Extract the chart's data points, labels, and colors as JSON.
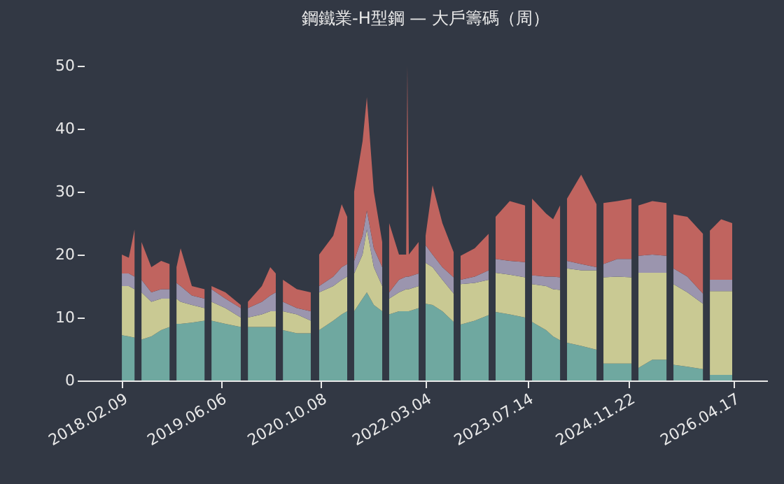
{
  "chart_data": {
    "type": "area",
    "stacked": true,
    "title": "鋼鐵業-H型鋼 — 大戶籌碼（周）",
    "x": [
      "2018-02-09",
      "2018-03-15",
      "2018-04-12",
      "2018-04-29",
      "2018-05-16",
      "2018-07-03",
      "2018-08-20",
      "2018-09-30",
      "2018-10-17",
      "2018-11-03",
      "2018-11-23",
      "2019-01-17",
      "2019-03-20",
      "2019-04-06",
      "2019-04-23",
      "2019-06-30",
      "2019-09-13",
      "2019-10-01",
      "2019-10-18",
      "2019-12-25",
      "2020-02-04",
      "2020-03-02",
      "2020-03-20",
      "2020-04-06",
      "2020-06-13",
      "2020-08-20",
      "2020-09-10",
      "2020-09-30",
      "2020-12-08",
      "2021-01-18",
      "2021-02-14",
      "2021-03-03",
      "2021-03-20",
      "2021-04-30",
      "2021-05-21",
      "2021-06-24",
      "2021-08-04",
      "2021-08-21",
      "2021-09-07",
      "2021-10-25",
      "2021-11-29",
      "2021-12-05",
      "2021-12-12",
      "2022-01-29",
      "2022-02-15",
      "2022-03-04",
      "2022-04-07",
      "2022-05-25",
      "2022-07-19",
      "2022-08-05",
      "2022-08-22",
      "2022-10-30",
      "2023-01-06",
      "2023-01-23",
      "2023-02-09",
      "2023-04-19",
      "2023-07-03",
      "2023-07-20",
      "2023-08-06",
      "2023-10-14",
      "2023-11-17",
      "2023-12-21",
      "2024-01-07",
      "2024-01-24",
      "2024-04-02",
      "2024-06-16",
      "2024-07-03",
      "2024-07-20",
      "2024-09-26",
      "2024-12-04",
      "2024-12-21",
      "2025-01-07",
      "2025-03-16",
      "2025-05-24",
      "2025-06-10",
      "2025-06-27",
      "2025-09-03",
      "2025-11-18",
      "2025-12-05",
      "2025-12-22",
      "2026-02-15",
      "2026-04-10"
    ],
    "xlim": [
      "2017-08-08",
      "2026-09-28"
    ],
    "xticks": [
      {
        "value": "2018-02-09",
        "label": "2018.02.09"
      },
      {
        "value": "2019-06-06",
        "label": "2019.06.06"
      },
      {
        "value": "2020-10-08",
        "label": "2020.10.08"
      },
      {
        "value": "2022-03-04",
        "label": "2022.03.04"
      },
      {
        "value": "2023-07-14",
        "label": "2023.07.14"
      },
      {
        "value": "2024-11-22",
        "label": "2024.11.22"
      },
      {
        "value": "2026-04-17",
        "label": "2026.04.17"
      }
    ],
    "ylim": [
      0,
      50
    ],
    "yticks": [
      0,
      10,
      20,
      30,
      40,
      50
    ],
    "grid": false,
    "series": [
      {
        "color": "#6fa8a0",
        "values": [
          7.2,
          7,
          6.8,
          null,
          6.5,
          7,
          8,
          8.5,
          null,
          9,
          9,
          9.2,
          9.5,
          null,
          9.5,
          9,
          8.5,
          null,
          8.5,
          8.5,
          8.5,
          8.5,
          null,
          8,
          7.5,
          7.5,
          null,
          8,
          9.5,
          10.5,
          11,
          null,
          11,
          13,
          14,
          12,
          11,
          null,
          10.5,
          11,
          11,
          11,
          11,
          11.5,
          null,
          12.2,
          12,
          11,
          9.3,
          null,
          8.9,
          9.5,
          10.4,
          null,
          10.9,
          10.5,
          10,
          null,
          9.3,
          8,
          7,
          6.4,
          null,
          6,
          5.5,
          4.9,
          null,
          2.7,
          2.7,
          2.7,
          null,
          2,
          3.3,
          3.3,
          null,
          2.5,
          2.2,
          1.8,
          null,
          0.9,
          0.9,
          0.9
        ]
      },
      {
        "color": "#c9c993",
        "values": [
          7.8,
          8,
          7.7,
          null,
          7.5,
          5.5,
          5,
          4.5,
          null,
          4,
          3.5,
          2.8,
          2,
          null,
          3,
          2.5,
          1.5,
          null,
          1.5,
          2,
          2.5,
          2.5,
          null,
          3,
          3,
          2,
          null,
          6,
          5.5,
          5.5,
          5.5,
          null,
          6,
          7,
          10,
          6,
          4,
          null,
          2.5,
          3,
          3.5,
          3.5,
          3.5,
          3.5,
          null,
          6.5,
          6,
          5,
          4.5,
          null,
          6.4,
          6,
          5.6,
          null,
          6.2,
          6.3,
          6.4,
          null,
          6,
          7,
          7.5,
          8,
          null,
          11.8,
          12,
          12.6,
          null,
          13.7,
          13.8,
          13.7,
          null,
          15.1,
          13.8,
          13.8,
          null,
          12.8,
          11.8,
          10.4,
          null,
          13.3,
          13.3,
          13.3
        ]
      },
      {
        "color": "#9b95ae",
        "values": [
          2,
          2,
          2,
          null,
          2,
          1.5,
          1.5,
          1.5,
          null,
          2.5,
          2.5,
          1.5,
          1.5,
          null,
          2,
          1.5,
          1.5,
          null,
          1.5,
          2,
          2.5,
          3,
          null,
          1.5,
          1,
          1.5,
          null,
          1,
          1.5,
          2,
          2,
          null,
          2,
          3,
          3,
          3,
          3,
          null,
          1,
          2,
          2,
          2,
          2,
          2,
          null,
          2.8,
          2,
          2,
          2.6,
          null,
          0.7,
          1,
          1.5,
          null,
          2.2,
          2.2,
          2.4,
          null,
          1.4,
          1.5,
          2,
          2,
          null,
          1.2,
          1,
          0.5,
          null,
          2.1,
          2.8,
          2.9,
          null,
          2.7,
          2.9,
          2.7,
          null,
          2.5,
          2.5,
          1.6,
          null,
          1.8,
          1.8,
          1.8
        ]
      },
      {
        "color": "#c0645f",
        "values": [
          3,
          2.5,
          7.5,
          null,
          6,
          4,
          4.5,
          4,
          null,
          2.5,
          6,
          1.5,
          1.5,
          null,
          0.5,
          1,
          0.5,
          null,
          1,
          2.5,
          4.5,
          3,
          null,
          3.5,
          3,
          3,
          null,
          5,
          6.5,
          10,
          7.5,
          null,
          11,
          15,
          18,
          9,
          4,
          null,
          11,
          4,
          3.5,
          33.5,
          3.5,
          5,
          null,
          1.5,
          11,
          7,
          4,
          null,
          3.8,
          4.5,
          5.8,
          null,
          6.7,
          9.5,
          9,
          null,
          12.2,
          10,
          9.1,
          11.4,
          null,
          9.9,
          14.2,
          10,
          null,
          9.7,
          9.2,
          9.6,
          null,
          8,
          8.5,
          8.4,
          null,
          8.6,
          9.5,
          9.5,
          null,
          7.8,
          9.6,
          9
        ]
      }
    ]
  }
}
